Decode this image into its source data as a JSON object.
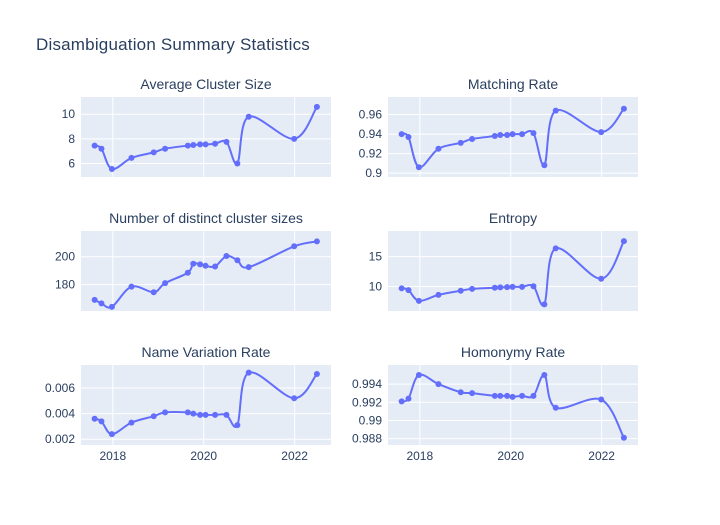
{
  "page": {
    "title": "Disambiguation Summary Statistics"
  },
  "theme": {
    "accent": "#636efa",
    "plot_background": "#e5ecf6",
    "gridline": "#ffffff",
    "font_color": "#2a3f5f",
    "paper_background": "#ffffff"
  },
  "x_axis": {
    "range": [
      2017.3,
      2022.8
    ],
    "ticks": [
      2018,
      2020,
      2022
    ],
    "tick_labels": [
      "2018",
      "2020",
      "2022"
    ]
  },
  "chart_data": [
    {
      "type": "line",
      "title": "Average Cluster Size",
      "x": [
        2017.6,
        2017.75,
        2017.98,
        2018.41,
        2018.9,
        2019.15,
        2019.65,
        2019.77,
        2019.92,
        2020.04,
        2020.25,
        2020.5,
        2020.74,
        2020.99,
        2021.99,
        2022.49
      ],
      "y": [
        7.45,
        7.2,
        5.55,
        6.45,
        6.9,
        7.2,
        7.45,
        7.5,
        7.55,
        7.55,
        7.6,
        7.75,
        6.0,
        9.8,
        8.0,
        10.6
      ],
      "yticks": [
        6,
        8,
        10
      ],
      "ytick_labels": [
        "6",
        "8",
        "10"
      ],
      "yrange": [
        4.9,
        11.4
      ],
      "show_x_labels": false,
      "line_shape": "spline",
      "markers": true
    },
    {
      "type": "line",
      "title": "Matching Rate",
      "x": [
        2017.6,
        2017.75,
        2017.98,
        2018.41,
        2018.9,
        2019.15,
        2019.65,
        2019.77,
        2019.92,
        2020.04,
        2020.25,
        2020.5,
        2020.74,
        2020.99,
        2021.99,
        2022.49
      ],
      "y": [
        0.94,
        0.937,
        0.906,
        0.925,
        0.931,
        0.935,
        0.938,
        0.939,
        0.939,
        0.94,
        0.94,
        0.941,
        0.908,
        0.964,
        0.942,
        0.966
      ],
      "yticks": [
        0.9,
        0.92,
        0.94,
        0.96
      ],
      "ytick_labels": [
        "0.9",
        "0.92",
        "0.94",
        "0.96"
      ],
      "yrange": [
        0.896,
        0.978
      ],
      "show_x_labels": false,
      "line_shape": "spline",
      "markers": true
    },
    {
      "type": "line",
      "title": "Number of distinct cluster sizes",
      "x": [
        2017.6,
        2017.75,
        2017.98,
        2018.41,
        2018.9,
        2019.15,
        2019.65,
        2019.77,
        2019.92,
        2020.04,
        2020.25,
        2020.5,
        2020.74,
        2020.99,
        2021.99,
        2022.49
      ],
      "y": [
        169,
        166.5,
        164,
        178.5,
        174.5,
        181,
        188.5,
        195,
        194.5,
        193.5,
        193,
        200.5,
        197.5,
        192.5,
        207.5,
        211
      ],
      "yticks": [
        180,
        200
      ],
      "ytick_labels": [
        "180",
        "200"
      ],
      "yrange": [
        161,
        218.5
      ],
      "show_x_labels": false,
      "line_shape": "spline",
      "markers": true
    },
    {
      "type": "line",
      "title": "Entropy",
      "x": [
        2017.6,
        2017.75,
        2017.98,
        2018.41,
        2018.9,
        2019.15,
        2019.65,
        2019.77,
        2019.92,
        2020.04,
        2020.25,
        2020.5,
        2020.74,
        2020.99,
        2021.99,
        2022.49
      ],
      "y": [
        9.7,
        9.4,
        7.6,
        8.6,
        9.3,
        9.6,
        9.8,
        9.85,
        9.9,
        9.95,
        9.95,
        10.05,
        7.0,
        16.4,
        11.3,
        17.6
      ],
      "yticks": [
        10,
        15
      ],
      "ytick_labels": [
        "10",
        "15"
      ],
      "yrange": [
        5.9,
        19.3
      ],
      "show_x_labels": false,
      "line_shape": "spline",
      "markers": true
    },
    {
      "type": "line",
      "title": "Name Variation Rate",
      "x": [
        2017.6,
        2017.75,
        2017.98,
        2018.41,
        2018.9,
        2019.15,
        2019.65,
        2019.77,
        2019.92,
        2020.04,
        2020.25,
        2020.5,
        2020.74,
        2020.99,
        2021.99,
        2022.49
      ],
      "y": [
        0.0036,
        0.0034,
        0.0024,
        0.0033,
        0.0038,
        0.0041,
        0.0041,
        0.004,
        0.0039,
        0.0039,
        0.0039,
        0.0039,
        0.0031,
        0.0072,
        0.0052,
        0.0071
      ],
      "yticks": [
        0.002,
        0.004,
        0.006
      ],
      "ytick_labels": [
        "0.002",
        "0.004",
        "0.006"
      ],
      "yrange": [
        0.00155,
        0.0078
      ],
      "show_x_labels": true,
      "line_shape": "spline",
      "markers": true
    },
    {
      "type": "line",
      "title": "Homonymy Rate",
      "x": [
        2017.6,
        2017.75,
        2017.98,
        2018.41,
        2018.9,
        2019.15,
        2019.65,
        2019.77,
        2019.92,
        2020.04,
        2020.25,
        2020.5,
        2020.74,
        2020.99,
        2021.99,
        2022.49
      ],
      "y": [
        0.9921,
        0.9924,
        0.995,
        0.994,
        0.9931,
        0.993,
        0.9927,
        0.9927,
        0.9927,
        0.9926,
        0.9927,
        0.9927,
        0.995,
        0.9914,
        0.9923,
        0.9881
      ],
      "yticks": [
        0.988,
        0.99,
        0.992,
        0.994
      ],
      "ytick_labels": [
        "0.988",
        "0.99",
        "0.992",
        "0.994"
      ],
      "yrange": [
        0.9873,
        0.9961
      ],
      "show_x_labels": true,
      "line_shape": "spline",
      "markers": true
    }
  ]
}
